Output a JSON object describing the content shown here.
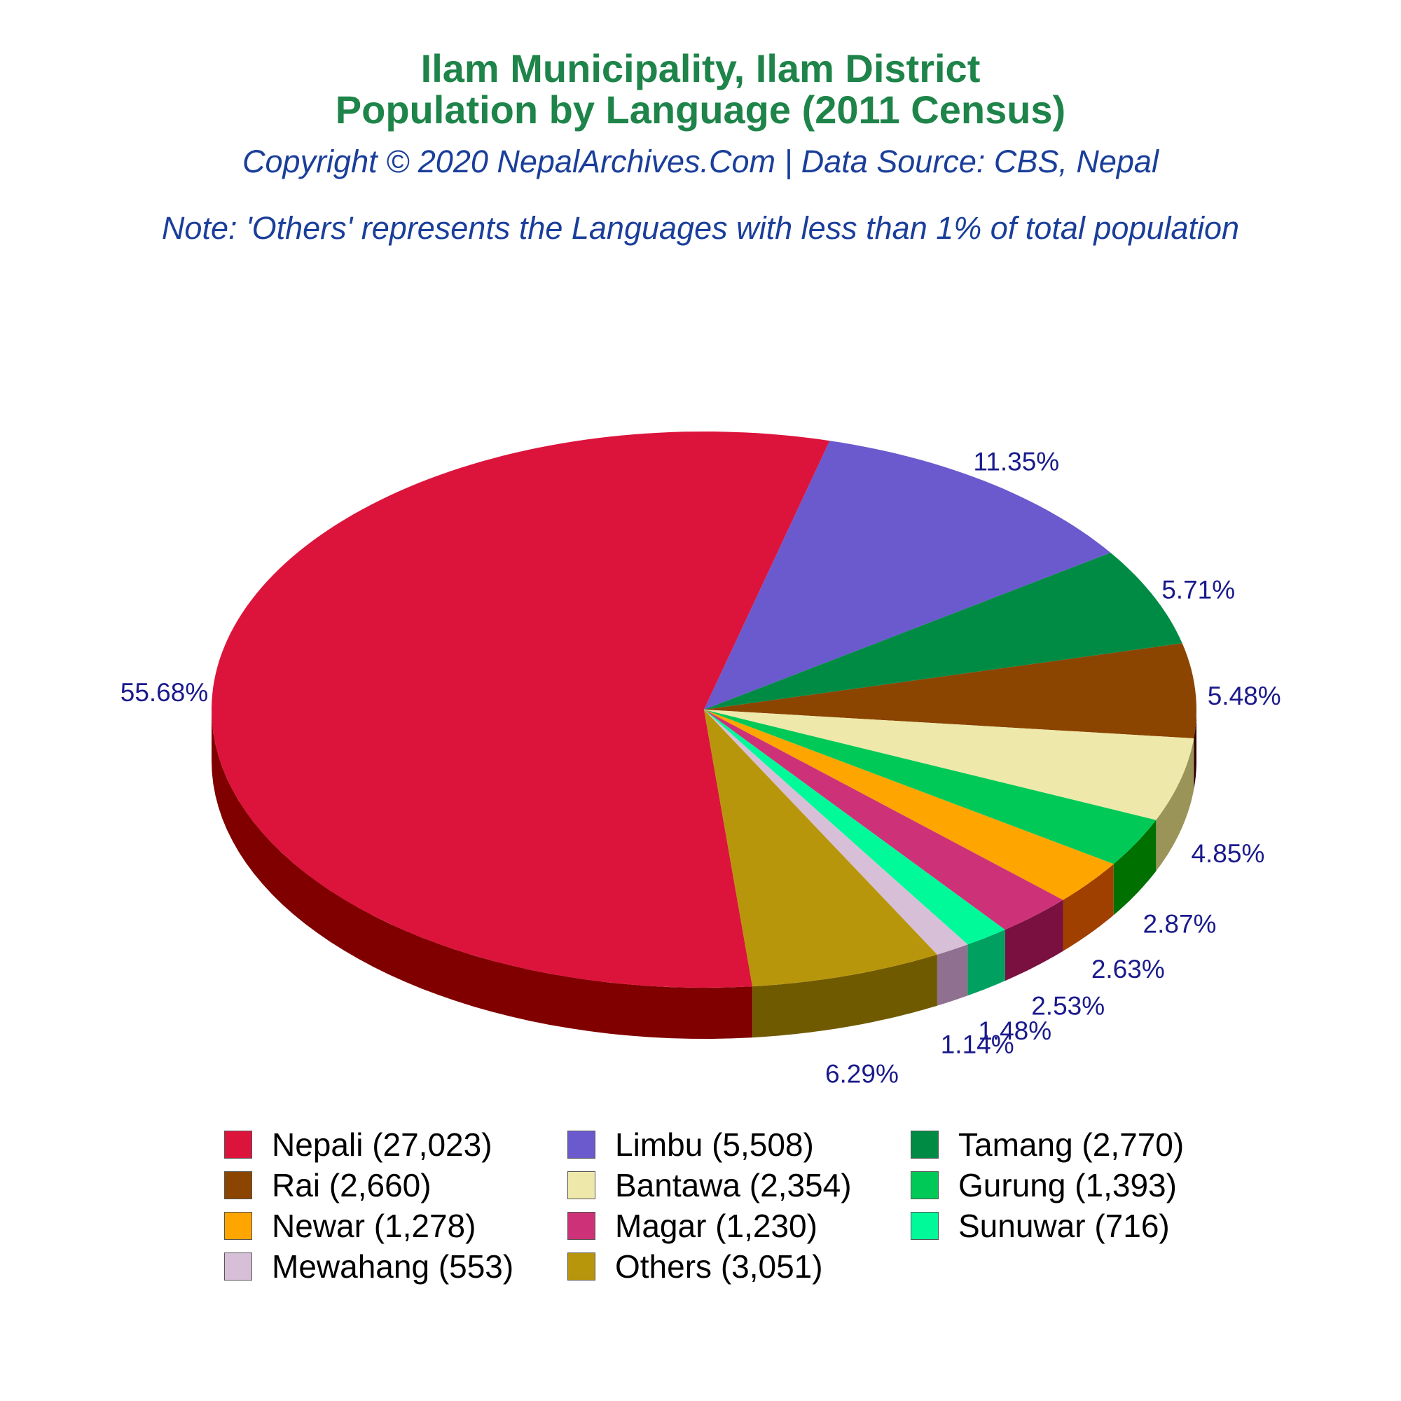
{
  "chart_data": {
    "type": "pie",
    "title": "Ilam Municipality, Ilam District",
    "subtitle": "Population by Language (2011 Census)",
    "credit": "Copyright © 2020 NepalArchives.Com | Data Source: CBS, Nepal",
    "note": "Note: 'Others' represents the Languages with less than 1% of total population",
    "slices": [
      {
        "label": "Nepali (27,023)",
        "value": 27023,
        "pct_label": "55.68%",
        "color": "#dc143c",
        "side": "#800000"
      },
      {
        "label": "Limbu (5,508)",
        "value": 5508,
        "pct_label": "11.35%",
        "color": "#6a5acd",
        "side": "#120070"
      },
      {
        "label": "Tamang (2,770)",
        "value": 2770,
        "pct_label": "5.71%",
        "color": "#008b45",
        "side": "#003000"
      },
      {
        "label": "Rai (2,660)",
        "value": 2660,
        "pct_label": "5.48%",
        "color": "#8b4500",
        "side": "#300000"
      },
      {
        "label": "Bantawa (2,354)",
        "value": 2354,
        "pct_label": "4.85%",
        "color": "#eee8aa",
        "side": "#9a9458"
      },
      {
        "label": "Gurung (1,393)",
        "value": 1393,
        "pct_label": "2.87%",
        "color": "#00c957",
        "side": "#007000"
      },
      {
        "label": "Newar (1,278)",
        "value": 1278,
        "pct_label": "2.63%",
        "color": "#ffa500",
        "side": "#a04000"
      },
      {
        "label": "Magar (1,230)",
        "value": 1230,
        "pct_label": "2.53%",
        "color": "#cd3278",
        "side": "#7a1040"
      },
      {
        "label": "Sunuwar (716)",
        "value": 716,
        "pct_label": "1.48%",
        "color": "#00fa9a",
        "side": "#00a060"
      },
      {
        "label": "Mewahang (553)",
        "value": 553,
        "pct_label": "1.14%",
        "color": "#d8bfd8",
        "side": "#907090"
      },
      {
        "label": "Others (3,051)",
        "value": 3051,
        "pct_label": "6.29%",
        "color": "#b8960b",
        "side": "#705a00"
      }
    ],
    "legend_position": "bottom"
  }
}
